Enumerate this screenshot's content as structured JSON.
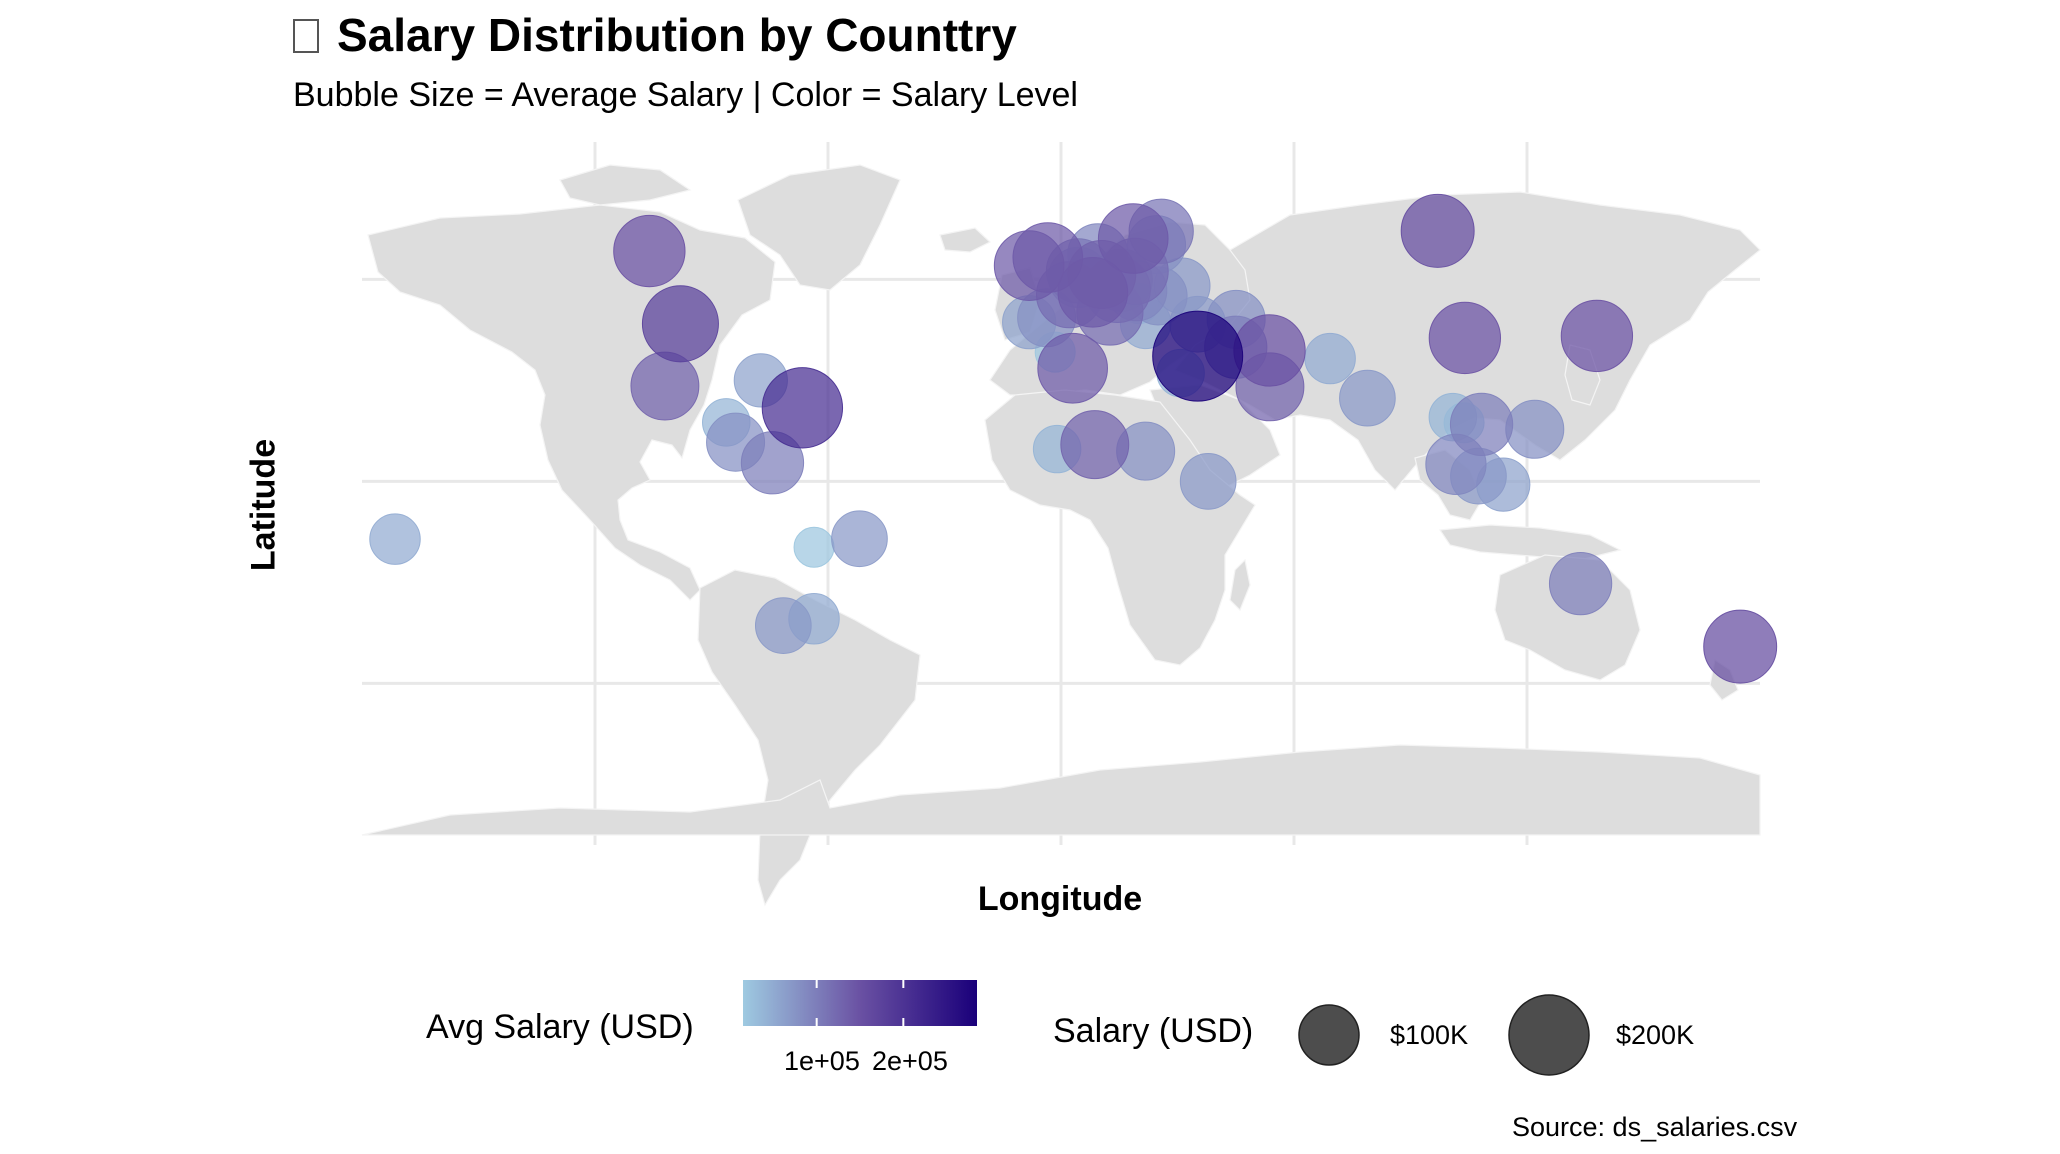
{
  "title": "Salary Distribution by Counttry",
  "subtitle": "Bubble Size = Average Salary | Color = Salary Level",
  "source": "Source: ds_salaries.csv",
  "colors": {
    "land": "#dddddd",
    "grid": "#e8e8e8",
    "low": "#9ecae1",
    "high": "#1a007a",
    "size_legend": "#3a3a3a"
  },
  "chart_data": {
    "type": "scatter",
    "title": "Salary Distribution by Counttry",
    "subtitle": "Bubble Size = Average Salary | Color = Salary Level",
    "xlabel": "Longitude",
    "ylabel": "Latitude",
    "xlim": [
      -180,
      180
    ],
    "ylim": [
      -90,
      84
    ],
    "grid": true,
    "legend_placement": "bottom",
    "color_legend": {
      "title": "Avg Salary (USD)",
      "tick_labels": [
        "1e+05",
        "2e+05"
      ],
      "ticks": [
        100000,
        200000
      ],
      "range": [
        15000,
        285000
      ]
    },
    "size_legend": {
      "title": "Salary (USD)",
      "labels": [
        "$100K",
        "$200K"
      ],
      "values": [
        100000,
        200000
      ]
    },
    "points": [
      {
        "lon": -106,
        "lat": 57,
        "salary": 150000
      },
      {
        "lon": -98,
        "lat": 39,
        "salary": 180000
      },
      {
        "lon": -102,
        "lat": 23.6,
        "salary": 130000
      },
      {
        "lon": -77.3,
        "lat": 25.0,
        "salary": 60000
      },
      {
        "lon": -66.6,
        "lat": 18.2,
        "salary": 210000
      },
      {
        "lon": -86.2,
        "lat": 14.6,
        "salary": 40000
      },
      {
        "lon": -83.8,
        "lat": 9.7,
        "salary": 80000
      },
      {
        "lon": -74.3,
        "lat": 4.6,
        "salary": 100000
      },
      {
        "lon": -51.9,
        "lat": -14.2,
        "salary": 70000
      },
      {
        "lon": -63.6,
        "lat": -16.3,
        "salary": 20000
      },
      {
        "lon": -71.5,
        "lat": -35.7,
        "salary": 70000
      },
      {
        "lon": -63.6,
        "lat": -34.0,
        "salary": 50000
      },
      {
        "lon": -171.5,
        "lat": -14.3,
        "salary": 50000
      },
      {
        "lon": -8.2,
        "lat": 53.4,
        "salary": 140000
      },
      {
        "lon": -3.4,
        "lat": 55.4,
        "salary": 140000
      },
      {
        "lon": 2.2,
        "lat": 46.2,
        "salary": 120000
      },
      {
        "lon": -3.7,
        "lat": 40.5,
        "salary": 80000
      },
      {
        "lon": -8.2,
        "lat": 39.4,
        "salary": 60000
      },
      {
        "lon": 4.5,
        "lat": 52.1,
        "salary": 110000
      },
      {
        "lon": 4.5,
        "lat": 50.5,
        "salary": 90000
      },
      {
        "lon": 10.5,
        "lat": 51.2,
        "salary": 130000
      },
      {
        "lon": 8.2,
        "lat": 46.8,
        "salary": 140000
      },
      {
        "lon": 9.5,
        "lat": 56.3,
        "salary": 90000
      },
      {
        "lon": 12.6,
        "lat": 41.9,
        "salary": 120000
      },
      {
        "lon": 14.5,
        "lat": 47.5,
        "salary": 120000
      },
      {
        "lon": 15.5,
        "lat": 49.8,
        "salary": 100000
      },
      {
        "lon": 19.1,
        "lat": 52.0,
        "salary": 120000
      },
      {
        "lon": 19.5,
        "lat": 47.2,
        "salary": 90000
      },
      {
        "lon": 18.6,
        "lat": 60.1,
        "salary": 140000
      },
      {
        "lon": 25.8,
        "lat": 61.9,
        "salary": 110000
      },
      {
        "lon": 24.6,
        "lat": 58.6,
        "salary": 80000
      },
      {
        "lon": 21.8,
        "lat": 39.1,
        "salary": 50000
      },
      {
        "lon": 20.0,
        "lat": 44.0,
        "salary": 20000
      },
      {
        "lon": 25.0,
        "lat": 45.9,
        "salary": 80000
      },
      {
        "lon": 31.2,
        "lat": 48.4,
        "salary": 70000
      },
      {
        "lon": 35.2,
        "lat": 38.9,
        "salary": 70000
      },
      {
        "lon": 35.2,
        "lat": 31.0,
        "salary": 285000
      },
      {
        "lon": 30.8,
        "lat": 26.8,
        "salary": 40000
      },
      {
        "lon": 45.0,
        "lat": 33.2,
        "salary": 100000
      },
      {
        "lon": 53.7,
        "lat": 32.4,
        "salary": 150000
      },
      {
        "lon": 53.8,
        "lat": 23.4,
        "salary": 130000
      },
      {
        "lon": 45.1,
        "lat": 40.1,
        "salary": 80000
      },
      {
        "lon": 97,
        "lat": 62,
        "salary": 160000
      },
      {
        "lon": 104,
        "lat": 35.5,
        "salary": 150000
      },
      {
        "lon": 138,
        "lat": 36,
        "salary": 150000
      },
      {
        "lon": 69.3,
        "lat": 30.4,
        "salary": 50000
      },
      {
        "lon": 78.9,
        "lat": 20.6,
        "salary": 70000
      },
      {
        "lon": 108.3,
        "lat": 14.1,
        "salary": 100000
      },
      {
        "lon": 100.9,
        "lat": 15.9,
        "salary": 40000
      },
      {
        "lon": 103.8,
        "lat": 14.5,
        "salary": 20000
      },
      {
        "lon": 122,
        "lat": 12.9,
        "salary": 80000
      },
      {
        "lon": 101.7,
        "lat": 4.2,
        "salary": 90000
      },
      {
        "lon": 107.5,
        "lat": 1.3,
        "salary": 70000
      },
      {
        "lon": 113.9,
        "lat": -0.8,
        "salary": 60000
      },
      {
        "lon": 133.8,
        "lat": -25.3,
        "salary": 100000
      },
      {
        "lon": 174.9,
        "lat": -40.9,
        "salary": 160000
      },
      {
        "lon": -1.5,
        "lat": 32.0,
        "salary": 20000
      },
      {
        "lon": 3.0,
        "lat": 28.0,
        "salary": 140000
      },
      {
        "lon": -1.0,
        "lat": 8.0,
        "salary": 40000
      },
      {
        "lon": 8.7,
        "lat": 9.1,
        "salary": 130000
      },
      {
        "lon": 21.8,
        "lat": 7.5,
        "salary": 80000
      },
      {
        "lon": 37.9,
        "lat": 0.0,
        "salary": 70000
      }
    ]
  }
}
